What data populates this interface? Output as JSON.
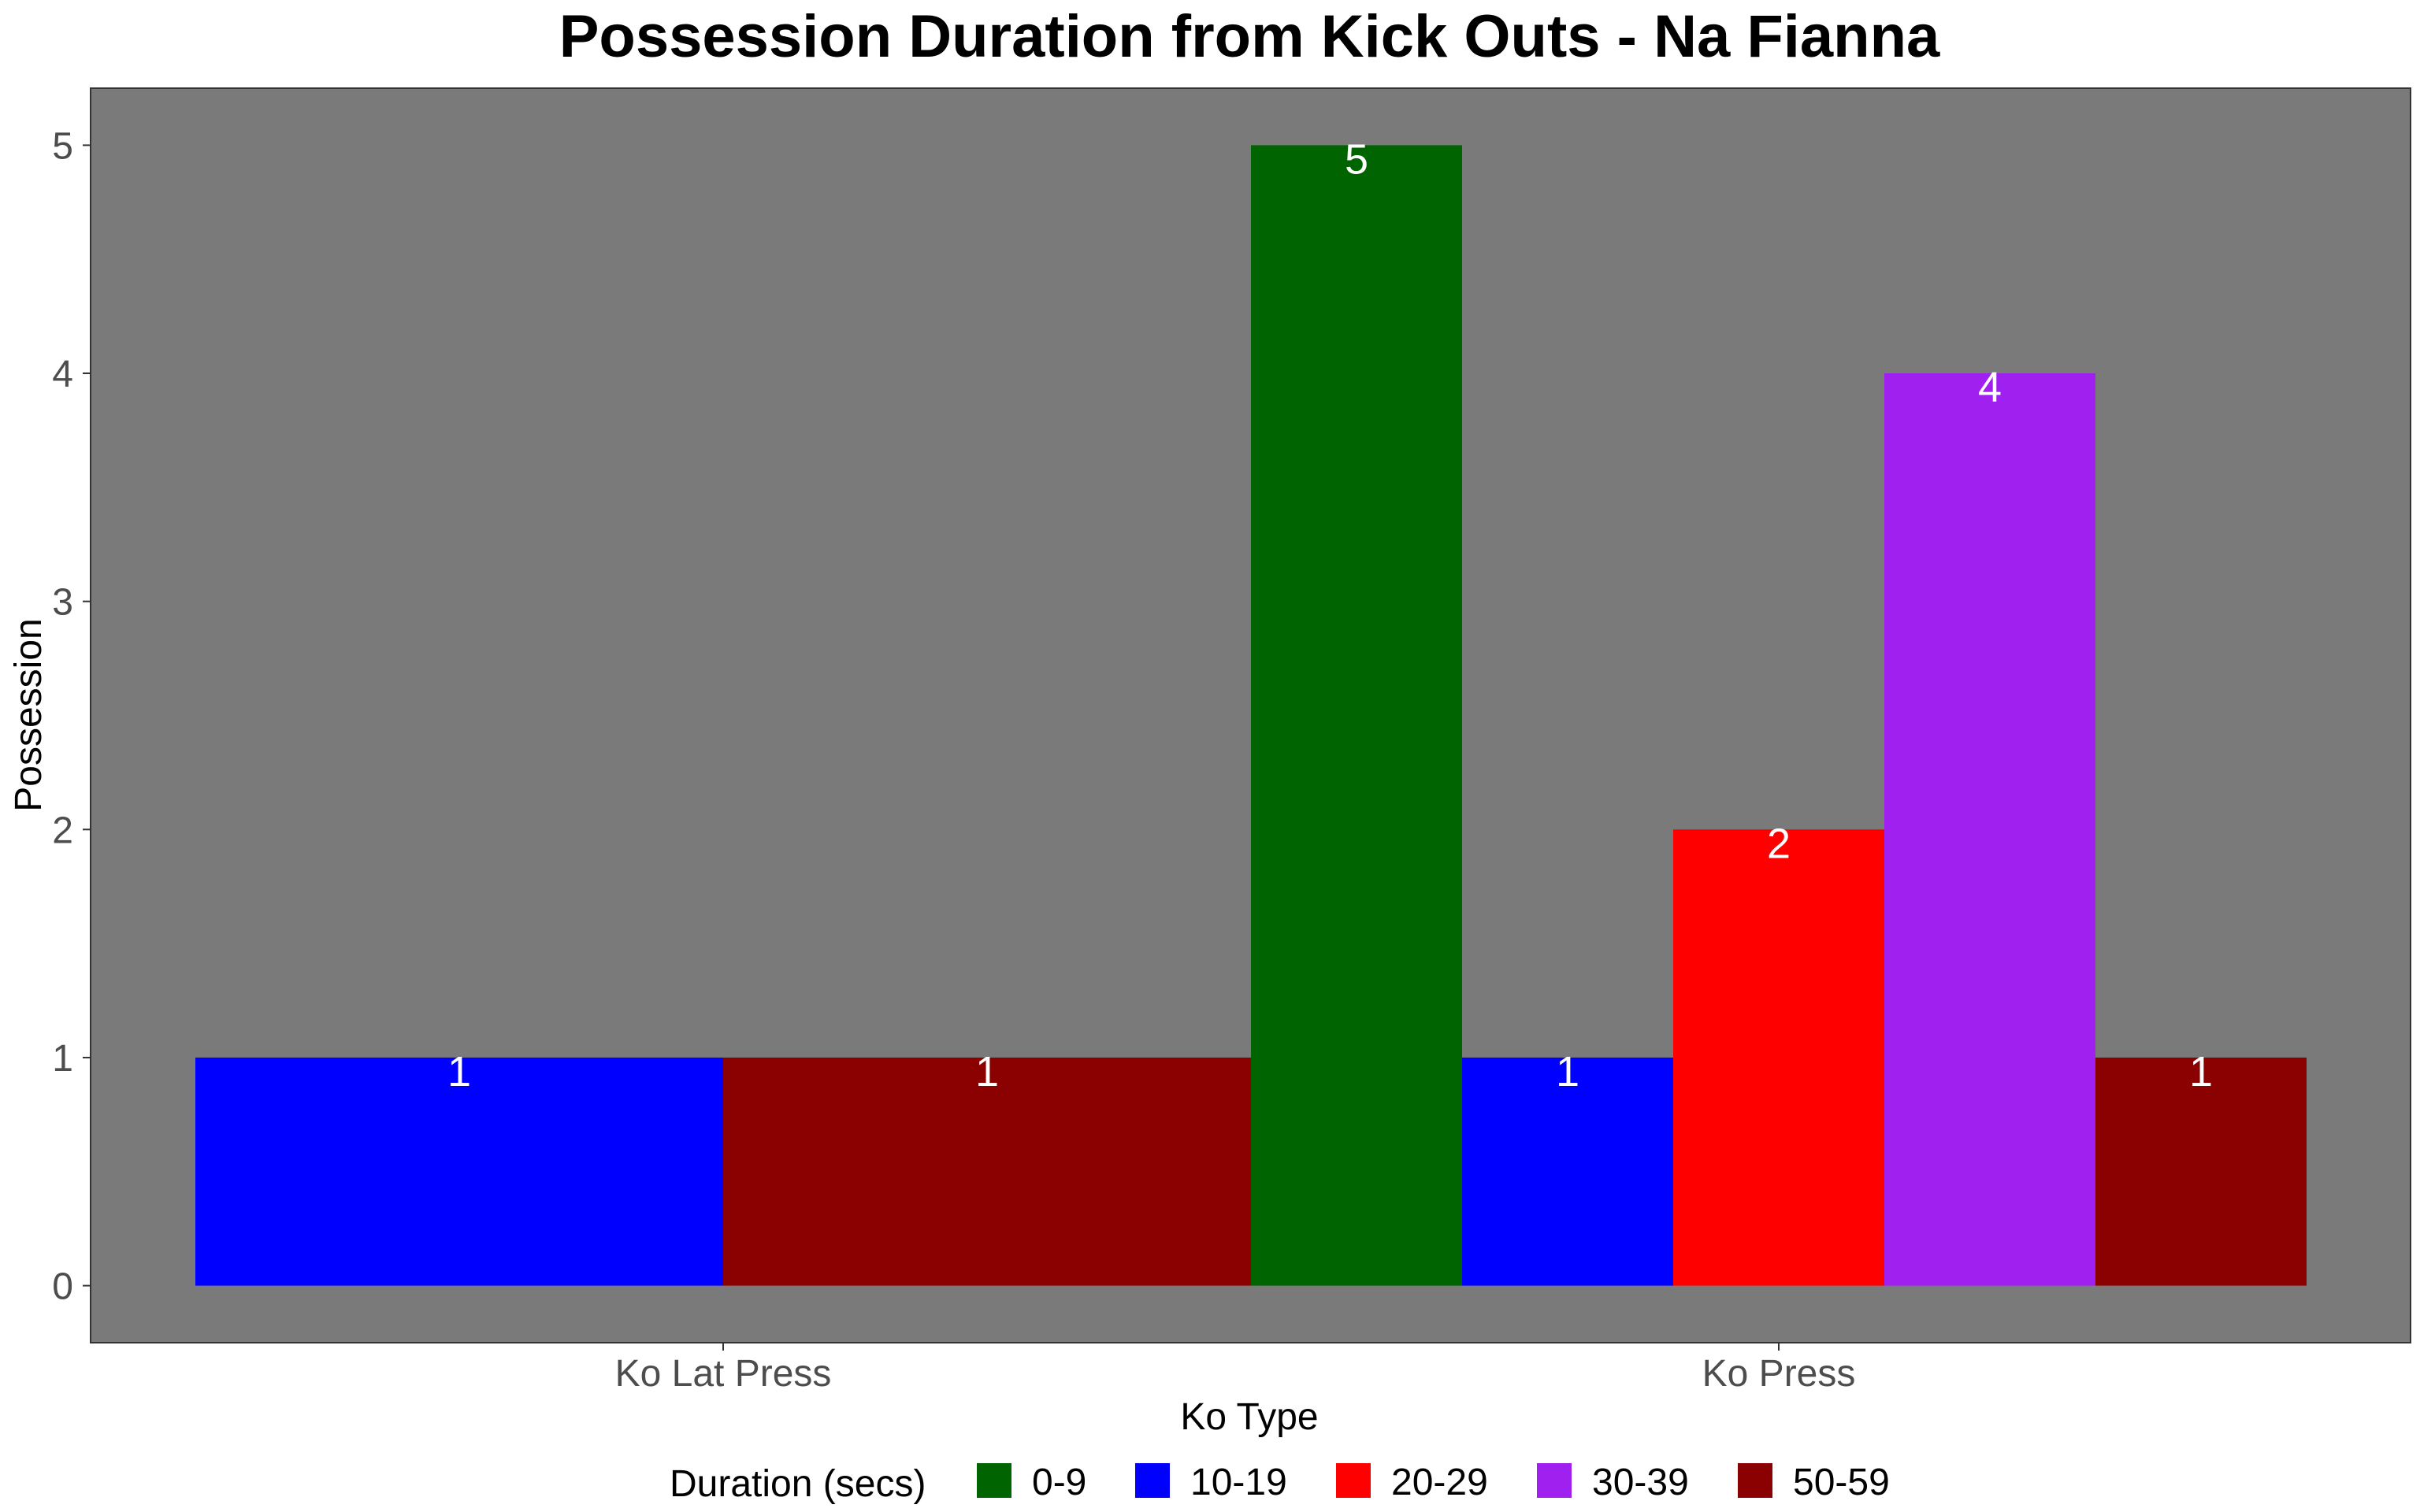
{
  "chart_data": {
    "type": "bar",
    "title": "Possession Duration from Kick Outs - Na Fianna",
    "xlabel": "Ko Type",
    "ylabel": "Possession",
    "categories": [
      "Ko Lat Press",
      "Ko Press"
    ],
    "ylim": [
      -0.25,
      5.25
    ],
    "yticks": [
      0,
      1,
      2,
      3,
      4,
      5
    ],
    "legend": {
      "title": "Duration (secs)",
      "position": "bottom"
    },
    "series": [
      {
        "name": "0-9",
        "color": "#006400",
        "values": [
          null,
          5
        ]
      },
      {
        "name": "10-19",
        "color": "#0000ff",
        "values": [
          1,
          1
        ]
      },
      {
        "name": "20-29",
        "color": "#ff0000",
        "values": [
          null,
          2
        ]
      },
      {
        "name": "30-39",
        "color": "#a020f0",
        "values": [
          null,
          4
        ]
      },
      {
        "name": "50-59",
        "color": "#8b0000",
        "values": [
          1,
          1
        ]
      }
    ],
    "panel_color": "#7a7a7a",
    "grid": false
  }
}
